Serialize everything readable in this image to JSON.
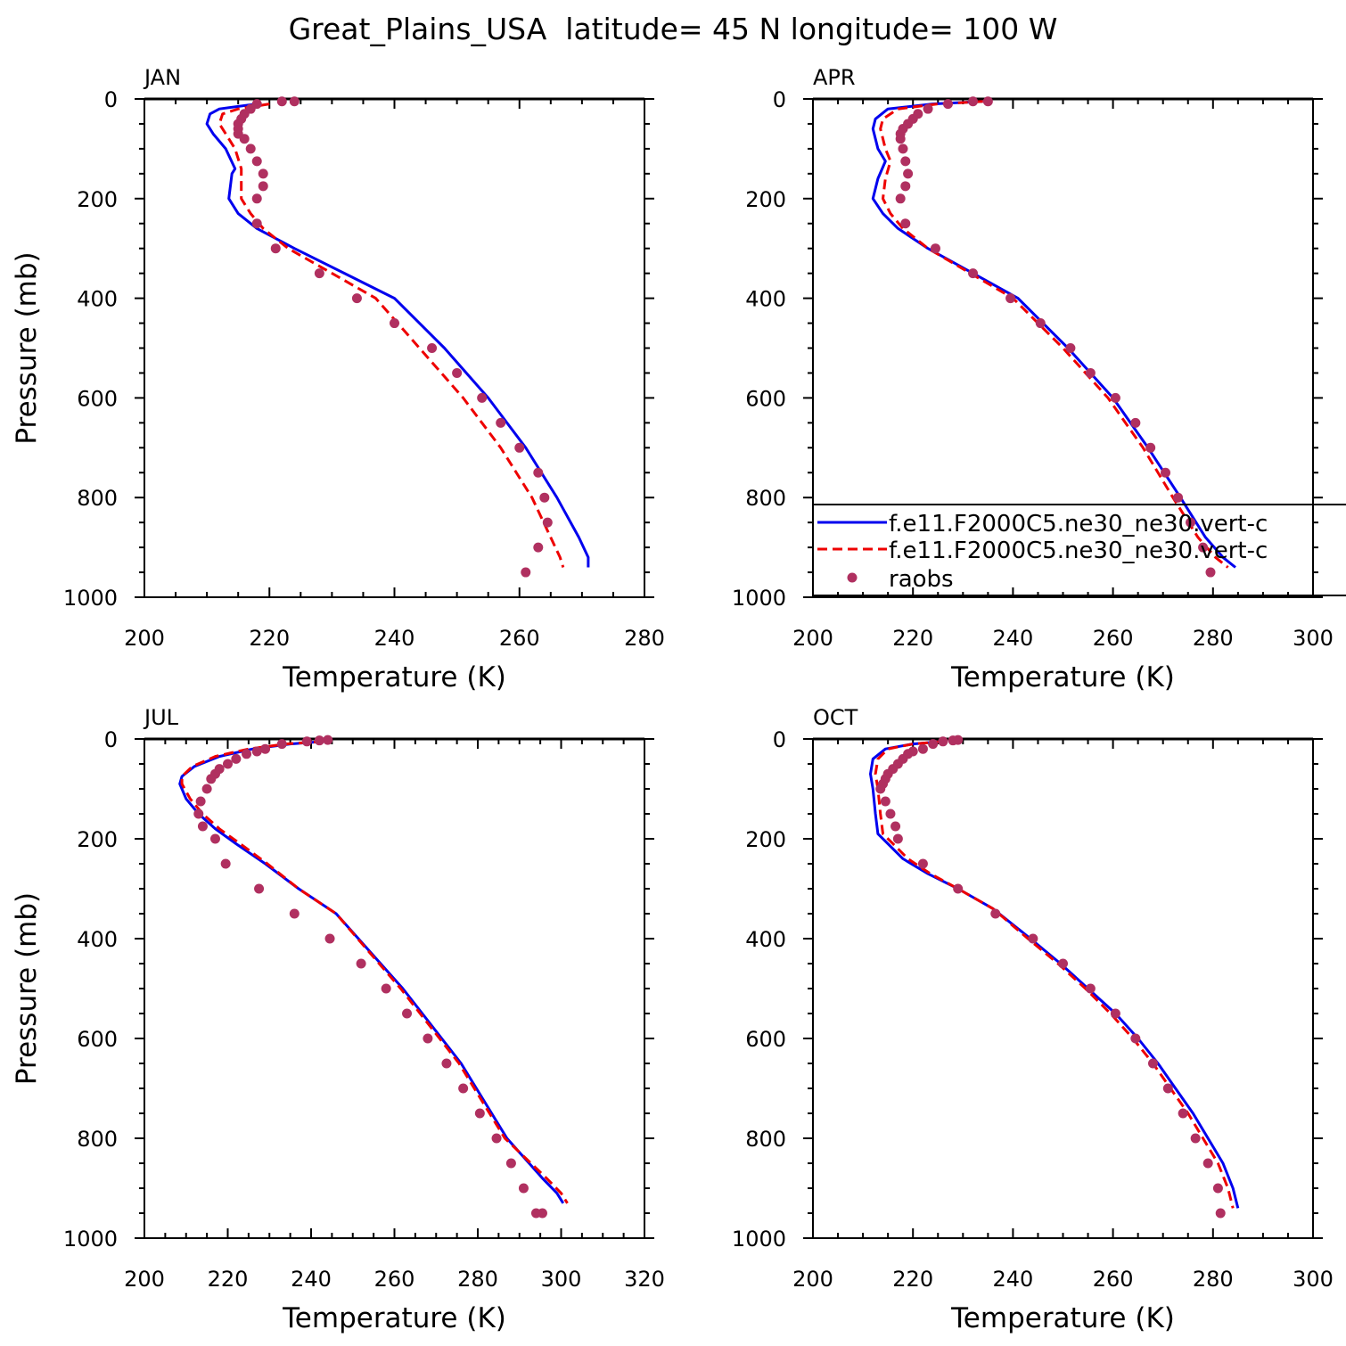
{
  "figure": {
    "title": "Great_Plains_USA  latitude= 45 N longitude= 100 W"
  },
  "colors": {
    "model_a": "#0000ee",
    "model_b": "#ee0000",
    "raobs": "#b03060",
    "axes": "#000000"
  },
  "legend": {
    "entries": [
      "f.e11.F2000C5.ne30_ne30.vert-c",
      "f.e11.F2000C5.ne30_ne30.vert-c",
      "raobs"
    ],
    "location": "lower-right of APR panel"
  },
  "chart_data": [
    {
      "type": "line",
      "panel_title": "JAN",
      "xlabel": "Temperature (K)",
      "ylabel": "Pressure (mb)",
      "xlim": [
        200,
        280
      ],
      "xticks": [
        200,
        220,
        240,
        260,
        280
      ],
      "ylim": [
        1000,
        0
      ],
      "yticks": [
        0,
        200,
        400,
        600,
        800,
        1000
      ],
      "series": [
        {
          "style": "solid",
          "x": [
            218,
            212,
            210.5,
            210,
            211,
            213,
            214.5,
            214,
            213.5,
            215,
            218,
            224,
            232,
            240,
            248,
            255,
            261,
            266,
            269.5,
            271,
            271
          ],
          "y": [
            10,
            20,
            30,
            50,
            70,
            100,
            140,
            150,
            200,
            230,
            260,
            300,
            350,
            400,
            500,
            600,
            700,
            800,
            880,
            920,
            940
          ]
        },
        {
          "style": "dashed",
          "x": [
            220,
            215,
            212.5,
            212,
            213,
            214.5,
            215.5,
            215.5,
            215.5,
            217,
            219,
            223,
            230,
            237,
            244,
            251,
            257,
            262,
            265,
            266.5,
            267
          ],
          "y": [
            10,
            20,
            30,
            50,
            70,
            100,
            140,
            150,
            200,
            230,
            260,
            300,
            350,
            400,
            500,
            600,
            700,
            800,
            880,
            920,
            940
          ]
        },
        {
          "style": "markers",
          "x": [
            224,
            222,
            218,
            217,
            216,
            215.5,
            215,
            215,
            215,
            216,
            217,
            218,
            219,
            219,
            218,
            218,
            221,
            228,
            234,
            240,
            246,
            250,
            254,
            257,
            260,
            263,
            264,
            264.5,
            263,
            261
          ],
          "y": [
            5,
            5,
            10,
            20,
            30,
            40,
            50,
            60,
            70,
            80,
            100,
            125,
            150,
            175,
            200,
            250,
            300,
            350,
            400,
            450,
            500,
            550,
            600,
            650,
            700,
            750,
            800,
            850,
            900,
            950
          ]
        }
      ]
    },
    {
      "type": "line",
      "panel_title": "APR",
      "xlabel": "Temperature (K)",
      "ylabel": "",
      "xlim": [
        200,
        300
      ],
      "xticks": [
        200,
        220,
        240,
        260,
        280,
        300
      ],
      "ylim": [
        1000,
        0
      ],
      "yticks": [
        0,
        200,
        400,
        600,
        800,
        1000
      ],
      "series": [
        {
          "style": "solid",
          "x": [
            234,
            224,
            215,
            212.5,
            212,
            213,
            214.5,
            213,
            212,
            214,
            217,
            223,
            232,
            241,
            251,
            260,
            267,
            273.5,
            278.5,
            282,
            284.5
          ],
          "y": [
            5,
            10,
            20,
            40,
            60,
            100,
            125,
            160,
            200,
            230,
            260,
            300,
            350,
            400,
            500,
            600,
            700,
            800,
            880,
            920,
            940
          ]
        },
        {
          "style": "dashed",
          "x": [
            234,
            225,
            217,
            214,
            213.5,
            214.5,
            215.5,
            214.5,
            214,
            215.5,
            218,
            223,
            231.5,
            240,
            250,
            259,
            266,
            272,
            277,
            280.5,
            283
          ],
          "y": [
            5,
            10,
            20,
            40,
            60,
            100,
            125,
            160,
            200,
            230,
            260,
            300,
            350,
            400,
            500,
            600,
            700,
            800,
            880,
            920,
            940
          ]
        },
        {
          "style": "markers",
          "x": [
            235,
            232,
            227,
            223,
            221,
            220,
            219,
            218,
            217.5,
            217.5,
            218,
            218.5,
            219,
            218.5,
            217.5,
            218.5,
            224.5,
            232,
            239.5,
            245.5,
            251.5,
            255.5,
            260.5,
            264.5,
            267.5,
            270.5,
            273,
            275.5,
            278,
            279.5
          ],
          "y": [
            5,
            5,
            10,
            20,
            30,
            40,
            50,
            60,
            70,
            80,
            100,
            125,
            150,
            175,
            200,
            250,
            300,
            350,
            400,
            450,
            500,
            550,
            600,
            650,
            700,
            750,
            800,
            850,
            900,
            950
          ]
        }
      ]
    },
    {
      "type": "line",
      "panel_title": "JUL",
      "xlabel": "Temperature (K)",
      "ylabel": "Pressure (mb)",
      "xlim": [
        200,
        320
      ],
      "xticks": [
        200,
        220,
        240,
        260,
        280,
        300,
        320
      ],
      "ylim": [
        1000,
        0
      ],
      "yticks": [
        0,
        200,
        400,
        600,
        800,
        1000
      ],
      "series": [
        {
          "style": "solid",
          "x": [
            243,
            235,
            226,
            218,
            212,
            209,
            208.5,
            210,
            213,
            217,
            222,
            229,
            237,
            246,
            262,
            276,
            287,
            295.5,
            299,
            300.5
          ],
          "y": [
            5,
            10,
            20,
            35,
            55,
            75,
            90,
            120,
            150,
            180,
            210,
            250,
            300,
            350,
            500,
            650,
            800,
            880,
            910,
            930
          ]
        },
        {
          "style": "dashed",
          "x": [
            243,
            234,
            225,
            217,
            211.5,
            209,
            209,
            211,
            214,
            218,
            223,
            229.5,
            237,
            246,
            261.5,
            275.5,
            286.5,
            296.5,
            300,
            301.5
          ],
          "y": [
            5,
            10,
            20,
            35,
            55,
            75,
            90,
            120,
            150,
            180,
            210,
            250,
            300,
            350,
            500,
            650,
            800,
            880,
            910,
            930
          ]
        },
        {
          "style": "markers",
          "x": [
            244,
            242,
            239,
            233,
            229,
            227,
            224.5,
            222,
            220,
            218,
            217,
            216,
            215,
            213.5,
            213,
            214,
            217,
            219.5,
            227.5,
            236,
            244.5,
            252,
            258,
            263,
            268,
            272.5,
            276.5,
            280.5,
            284.5,
            288,
            291,
            294,
            295.5
          ],
          "y": [
            2,
            3,
            5,
            10,
            20,
            25,
            30,
            40,
            50,
            60,
            70,
            80,
            100,
            125,
            150,
            175,
            200,
            250,
            300,
            350,
            400,
            450,
            500,
            550,
            600,
            650,
            700,
            750,
            800,
            850,
            900,
            950,
            950
          ]
        }
      ]
    },
    {
      "type": "line",
      "panel_title": "OCT",
      "xlabel": "Temperature (K)",
      "ylabel": "",
      "xlim": [
        200,
        300
      ],
      "xticks": [
        200,
        220,
        240,
        260,
        280,
        300
      ],
      "ylim": [
        1000,
        0
      ],
      "yticks": [
        0,
        200,
        400,
        600,
        800,
        1000
      ],
      "series": [
        {
          "style": "solid",
          "x": [
            226,
            220,
            214.5,
            212,
            211.5,
            212,
            212.5,
            213,
            215,
            218,
            223,
            229,
            236,
            243.5,
            249.5,
            255,
            260.5,
            265,
            269,
            272.5,
            276,
            279,
            282,
            284,
            285
          ],
          "y": [
            5,
            10,
            20,
            40,
            70,
            100,
            150,
            190,
            210,
            240,
            270,
            300,
            340,
            400,
            450,
            500,
            550,
            600,
            650,
            700,
            750,
            800,
            850,
            900,
            940
          ]
        },
        {
          "style": "dashed",
          "x": [
            226,
            220,
            215,
            213,
            212.5,
            213,
            213.5,
            214,
            216,
            219,
            223.5,
            229,
            236,
            243,
            249,
            254.5,
            259.5,
            264,
            268,
            271.5,
            275,
            278,
            281,
            283,
            284
          ],
          "y": [
            5,
            10,
            20,
            40,
            70,
            100,
            150,
            190,
            210,
            240,
            270,
            300,
            340,
            400,
            450,
            500,
            550,
            600,
            650,
            700,
            750,
            800,
            850,
            900,
            940
          ]
        },
        {
          "style": "markers",
          "x": [
            229,
            228,
            226,
            224,
            222,
            220,
            219,
            218,
            217,
            216,
            215,
            214.5,
            214,
            213.5,
            214.5,
            215.5,
            216.5,
            217,
            222,
            229,
            236.5,
            244,
            250,
            255.5,
            260.5,
            264.5,
            268,
            271,
            274,
            276.5,
            279,
            281,
            281.5
          ],
          "y": [
            2,
            3,
            5,
            10,
            20,
            25,
            30,
            40,
            50,
            60,
            70,
            80,
            90,
            100,
            125,
            150,
            175,
            200,
            250,
            300,
            350,
            400,
            450,
            500,
            550,
            600,
            650,
            700,
            750,
            800,
            850,
            900,
            950
          ]
        }
      ]
    }
  ]
}
